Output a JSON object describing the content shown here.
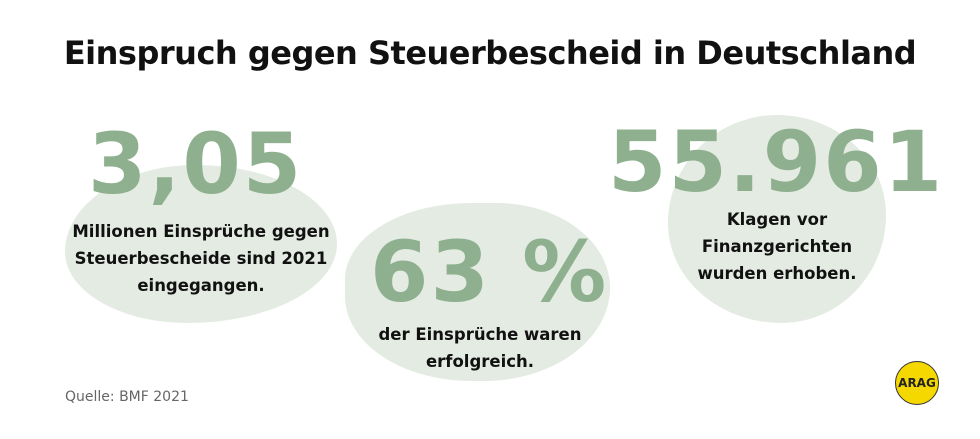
{
  "title": "Einspruch gegen Steuerbescheid in Deutschland",
  "stats": [
    {
      "value": "3,05",
      "lines": [
        "Millionen Einsprüche gegen",
        "Steuerbescheide sind 2021",
        "eingegangen."
      ]
    },
    {
      "value": "63 %",
      "lines": [
        "der Einsprüche waren",
        "erfolgreich."
      ]
    },
    {
      "value": "55.961",
      "lines": [
        "Klagen vor",
        "Finanzgerichten",
        "wurden erhoben."
      ]
    }
  ],
  "source": "Quelle:  BMF 2021",
  "logo": "ARAG",
  "colors": {
    "number": "#8fb08f",
    "blob": "#e3ebe2",
    "logo": "#f5d800"
  }
}
